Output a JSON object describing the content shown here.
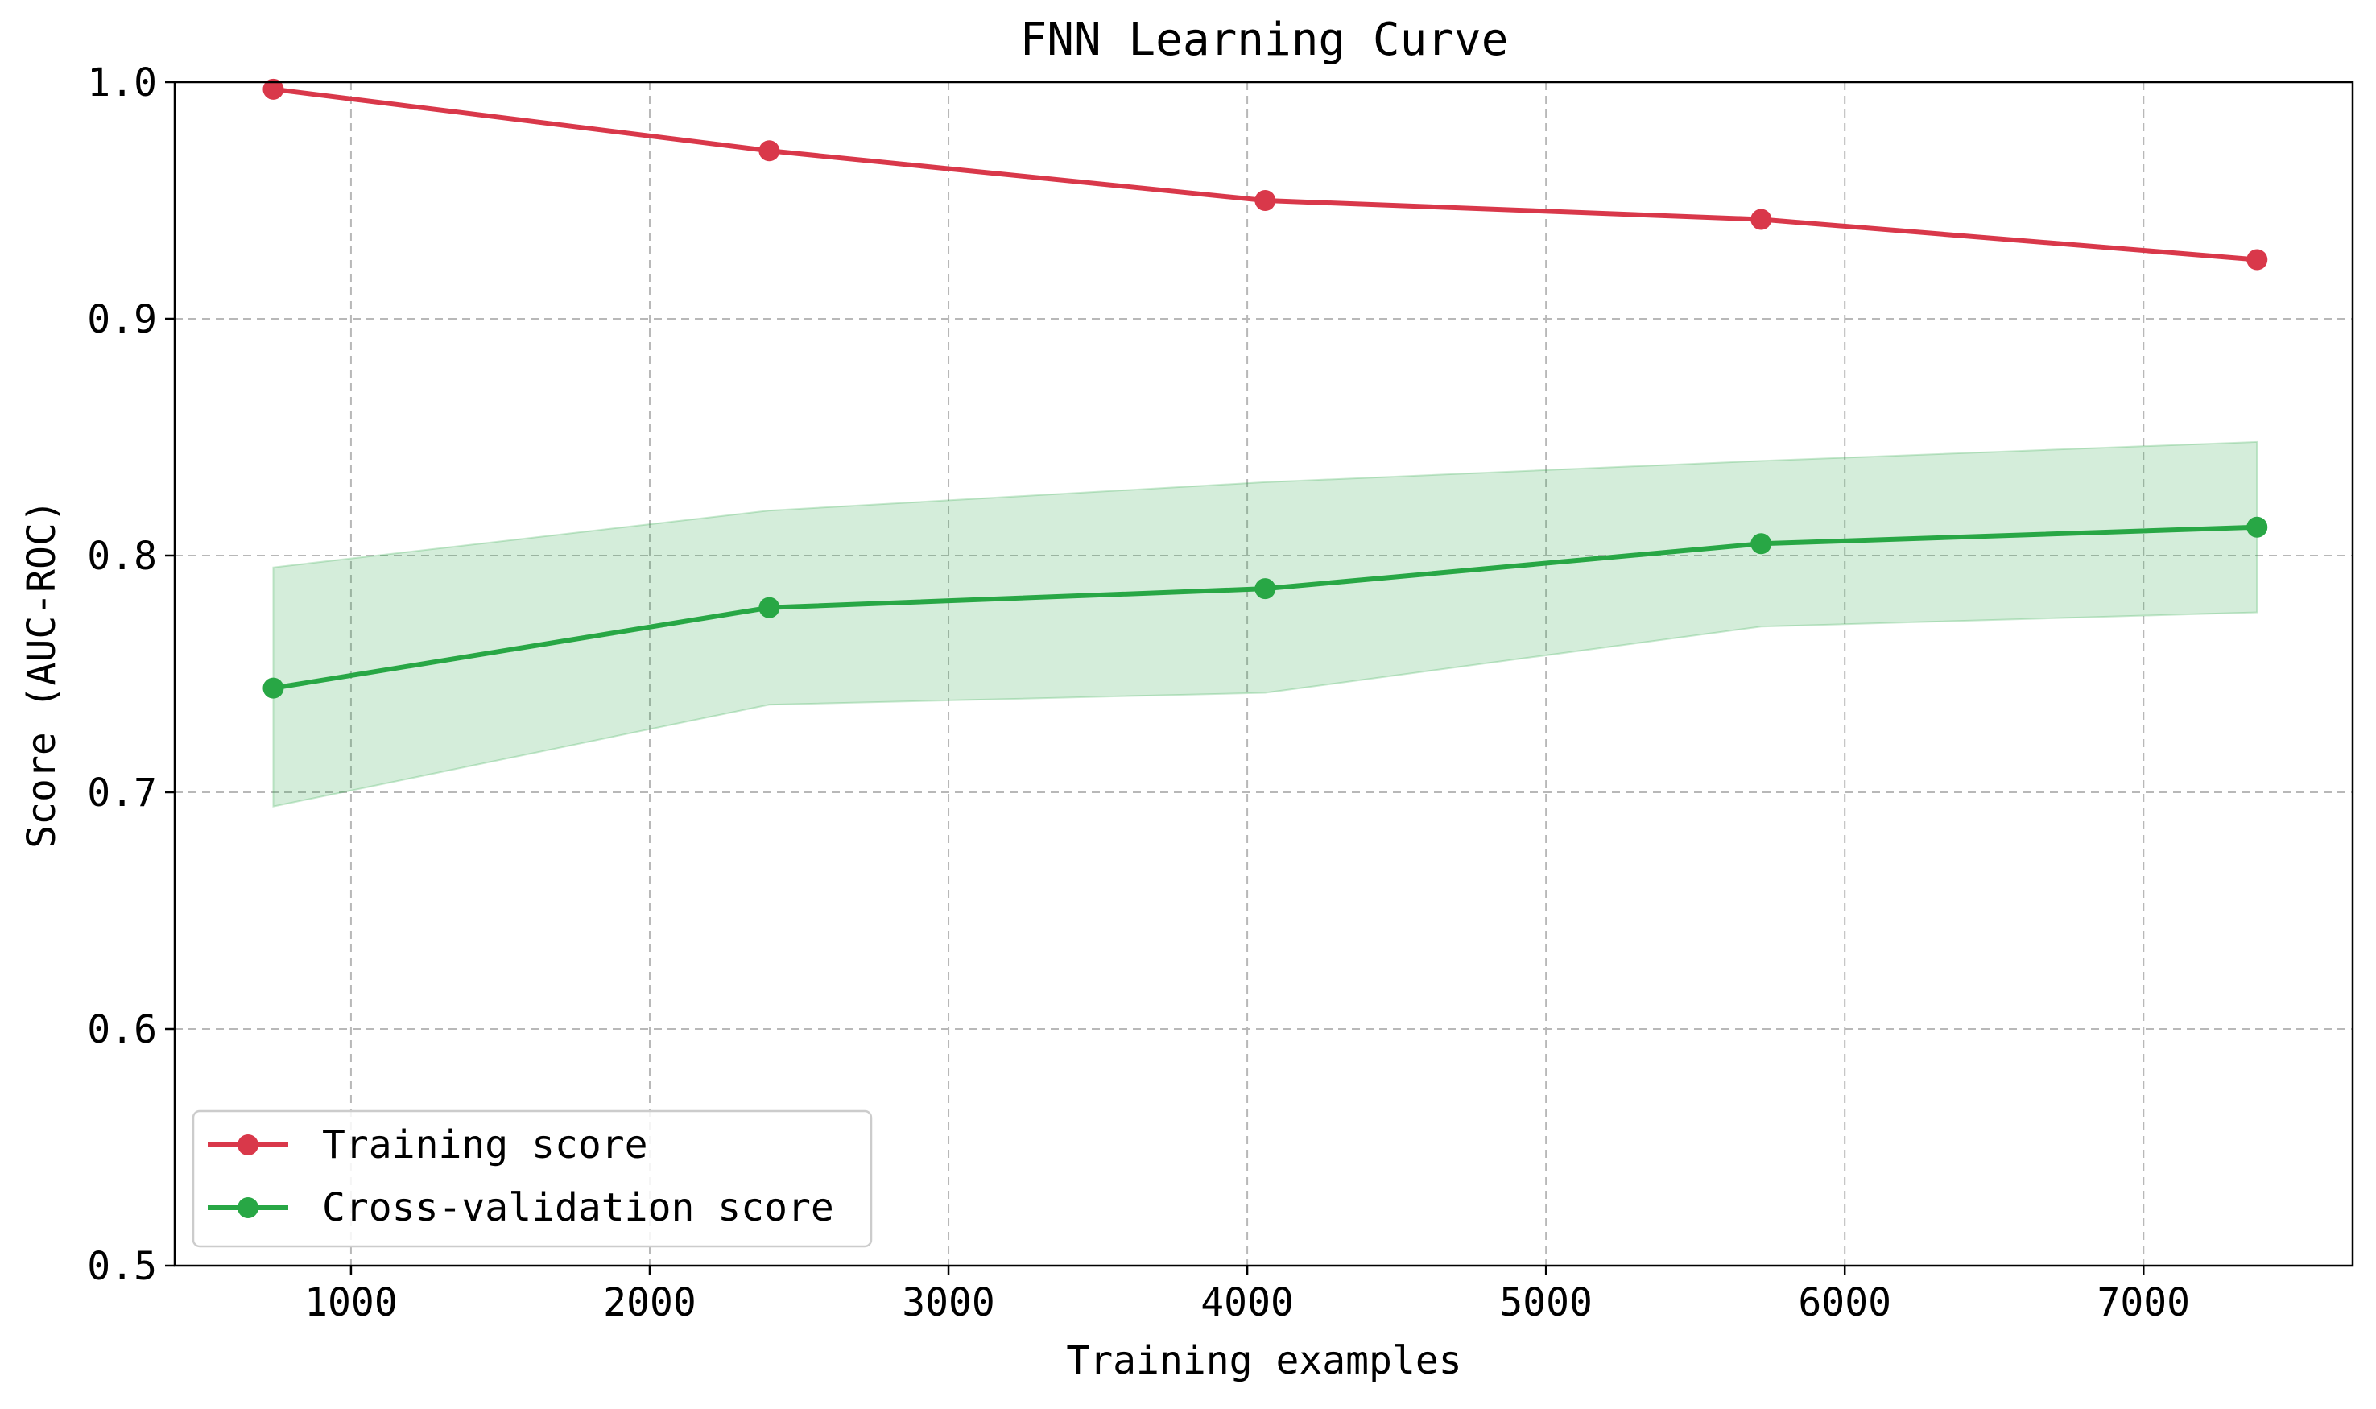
{
  "chart_data": {
    "type": "line",
    "title": "FNN Learning Curve",
    "xlabel": "Training examples",
    "ylabel": "Score (AUC-ROC)",
    "xlim": [
      410,
      7700
    ],
    "ylim": [
      0.5,
      1.0
    ],
    "xticks": [
      1000,
      2000,
      3000,
      4000,
      5000,
      6000,
      7000
    ],
    "yticks": [
      0.5,
      0.6,
      0.7,
      0.8,
      0.9,
      1.0
    ],
    "xtick_labels": [
      "1000",
      "2000",
      "3000",
      "4000",
      "5000",
      "6000",
      "7000"
    ],
    "ytick_labels": [
      "0.5",
      "0.6",
      "0.7",
      "0.8",
      "0.9",
      "1.0"
    ],
    "grid": true,
    "legend_position": "lower-left",
    "x": [
      740,
      2400,
      4060,
      5720,
      7380
    ],
    "series": [
      {
        "name": "Training score",
        "color": "#d9384a",
        "values": [
          0.997,
          0.971,
          0.95,
          0.942,
          0.925
        ]
      },
      {
        "name": "Cross-validation score",
        "color": "#28a745",
        "values": [
          0.744,
          0.778,
          0.786,
          0.805,
          0.812
        ],
        "band_lower": [
          0.694,
          0.737,
          0.742,
          0.77,
          0.776
        ],
        "band_upper": [
          0.795,
          0.819,
          0.831,
          0.84,
          0.848
        ],
        "band_color": "#28a745"
      }
    ]
  }
}
